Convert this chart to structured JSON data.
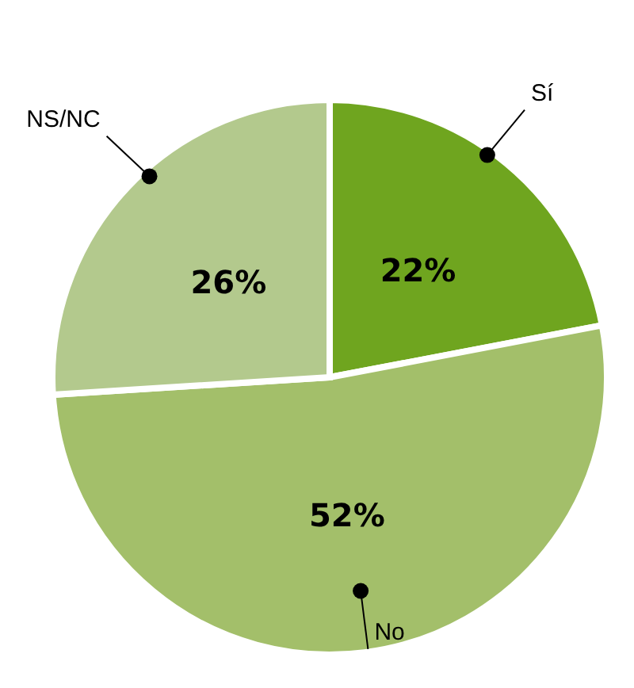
{
  "chart_data": {
    "type": "pie",
    "categories": [
      "Sí",
      "No",
      "NS/NC"
    ],
    "values": [
      22,
      52,
      26
    ],
    "colors": [
      "#6fa51f",
      "#a3bf6a",
      "#b3c98d"
    ],
    "value_labels": [
      "22%",
      "52%",
      "26%"
    ],
    "legend": false
  }
}
